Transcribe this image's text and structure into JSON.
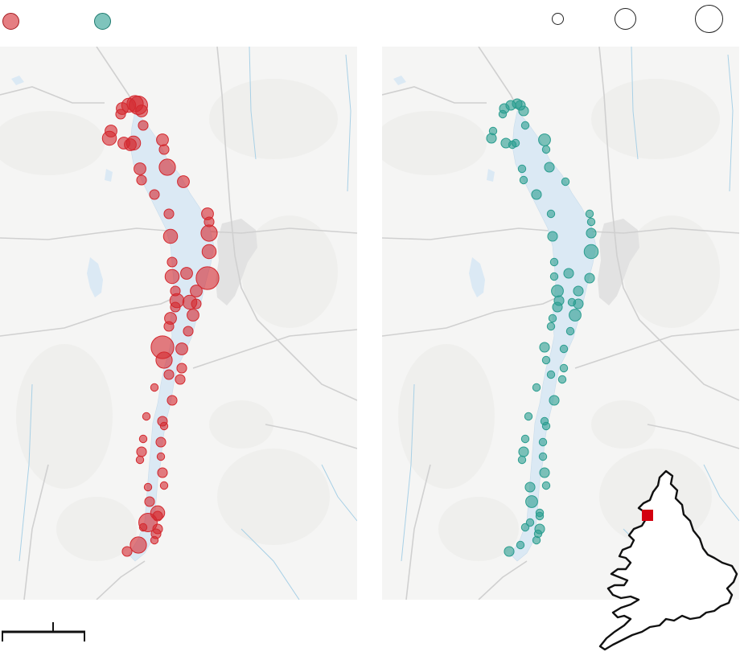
{
  "legend": {
    "series_a_color": "#d3282e",
    "series_b_color": "#2a9d8f",
    "size_key_sizes": [
      "small",
      "medium",
      "large"
    ]
  },
  "map": {
    "lake_color": "#dbe9f4",
    "terrain_color": "#f5f5f4",
    "road_color": "#d0d0d0",
    "river_color": "#a8d0e6"
  },
  "chart_data": {
    "type": "proportional-symbol-map",
    "series": [
      {
        "panel": "left",
        "color": "#d3282e",
        "values": [
          4,
          5,
          6,
          7,
          4,
          3,
          4,
          5,
          4,
          4,
          5,
          3,
          4,
          3,
          6,
          4,
          3,
          3,
          4,
          3,
          5,
          4,
          3,
          6,
          5,
          9,
          3,
          4,
          5,
          3,
          4,
          5,
          5,
          3,
          4,
          3,
          4,
          3,
          9,
          6,
          4,
          3,
          3,
          3,
          3,
          3,
          2,
          2,
          3,
          2,
          2,
          3,
          3,
          2,
          2,
          3,
          2,
          2,
          3,
          5,
          7,
          3,
          3,
          2,
          3,
          6,
          2,
          3
        ]
      },
      {
        "panel": "right",
        "color": "#2a9d8f",
        "values": [
          3,
          3,
          3,
          3,
          3,
          2,
          2,
          3,
          3,
          2,
          2,
          2,
          4,
          2,
          3,
          2,
          2,
          3,
          2,
          2,
          3,
          2,
          2,
          3,
          5,
          3,
          2,
          3,
          2,
          4,
          3,
          2,
          3,
          3,
          4,
          3,
          2,
          2,
          3,
          2,
          2,
          2,
          2,
          2,
          2,
          3,
          2,
          2,
          2,
          2,
          2,
          2,
          3,
          2,
          2,
          3,
          3,
          2,
          4,
          2,
          2,
          3,
          2,
          2,
          3,
          2,
          2,
          2
        ]
      }
    ]
  },
  "scalebar": {
    "ticks": 3
  },
  "inset": {
    "outline_color": "#111111",
    "highlight_color": "#d3000f"
  }
}
